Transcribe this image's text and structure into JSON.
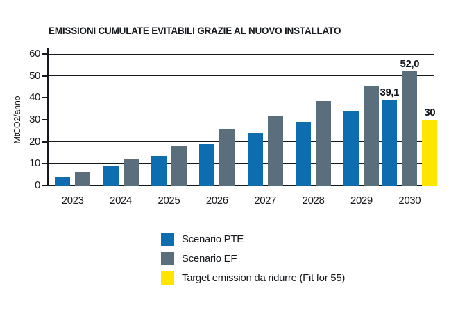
{
  "title": "EMISSIONI CUMULATE EVITABILI GRAZIE AL NUOVO INSTALLATO",
  "colors": {
    "scenario_pte": "#0e6dae",
    "scenario_ef": "#5b6e7c",
    "target": "#ffe500",
    "axis": "#15181c"
  },
  "chart_data": {
    "type": "bar",
    "title": "EMISSIONI CUMULATE EVITABILI GRAZIE AL NUOVO INSTALLATO",
    "categories": [
      "2023",
      "2024",
      "2025",
      "2026",
      "2027",
      "2028",
      "2029",
      "2030"
    ],
    "series": [
      {
        "name": "Scenario PTE",
        "color": "#0e6dae",
        "values": [
          4,
          9,
          13.5,
          19,
          24,
          29,
          34,
          39.1
        ]
      },
      {
        "name": "Scenario EF",
        "color": "#5b6e7c",
        "values": [
          6,
          12,
          18,
          26,
          32,
          38.5,
          45.5,
          52
        ]
      },
      {
        "name": "Target emission da ridurre (Fit for 55)",
        "color": "#ffe500",
        "values": [
          null,
          null,
          null,
          null,
          null,
          null,
          null,
          30
        ]
      }
    ],
    "data_labels": [
      {
        "series": 0,
        "category": "2030",
        "text": "39,1"
      },
      {
        "series": 1,
        "category": "2030",
        "text": "52,0"
      },
      {
        "series": 2,
        "category": "2030",
        "text": "30"
      }
    ],
    "xlabel": "",
    "ylabel": "MtCO2/anno",
    "ylim": [
      0,
      60
    ],
    "yticks": [
      0,
      10,
      20,
      30,
      40,
      50,
      60
    ],
    "grid": true,
    "legend_position": "bottom-left"
  }
}
